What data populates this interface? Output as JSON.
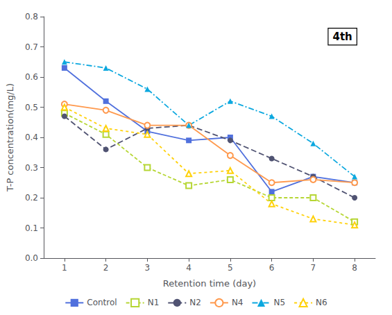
{
  "chart_data": {
    "type": "line",
    "x": [
      1,
      2,
      3,
      4,
      5,
      6,
      7,
      8
    ],
    "series": [
      {
        "name": "Control",
        "values": [
          0.63,
          0.52,
          0.42,
          0.39,
          0.4,
          0.22,
          0.27,
          0.25
        ],
        "marker": "square",
        "line_style": "solid"
      },
      {
        "name": "N1",
        "values": [
          0.48,
          0.41,
          0.3,
          0.24,
          0.26,
          0.2,
          0.2,
          0.12
        ],
        "marker": "square_open",
        "line_style": "dashed"
      },
      {
        "name": "N2",
        "values": [
          0.47,
          0.36,
          0.43,
          0.44,
          0.39,
          0.33,
          0.27,
          0.2
        ],
        "marker": "circle",
        "line_style": "longdashed"
      },
      {
        "name": "N4",
        "values": [
          0.51,
          0.49,
          0.44,
          0.44,
          0.34,
          0.25,
          0.26,
          0.25
        ],
        "marker": "circle_open",
        "line_style": "solid"
      },
      {
        "name": "N5",
        "values": [
          0.65,
          0.63,
          0.56,
          0.44,
          0.52,
          0.47,
          0.38,
          0.27
        ],
        "marker": "triangle",
        "line_style": "dashdot"
      },
      {
        "name": "N6",
        "values": [
          0.5,
          0.43,
          0.41,
          0.28,
          0.29,
          0.18,
          0.13,
          0.11
        ],
        "marker": "triangle_open",
        "line_style": "dotted"
      }
    ],
    "xlabel": "Retention time (day)",
    "ylabel": "T-P concentration(mg/L)",
    "xlim": [
      0.5,
      8.5
    ],
    "xticks": [
      1,
      2,
      3,
      4,
      5,
      6,
      7,
      8
    ],
    "ylim": [
      0,
      0.8
    ],
    "yticks": [
      {
        "value": 0,
        "label": "0.0"
      },
      0.1,
      0.2,
      0.3,
      0.4,
      0.5,
      0.6,
      0.7,
      0.8
    ],
    "annotation": "4th",
    "legend": "bottom",
    "grid": false
  }
}
